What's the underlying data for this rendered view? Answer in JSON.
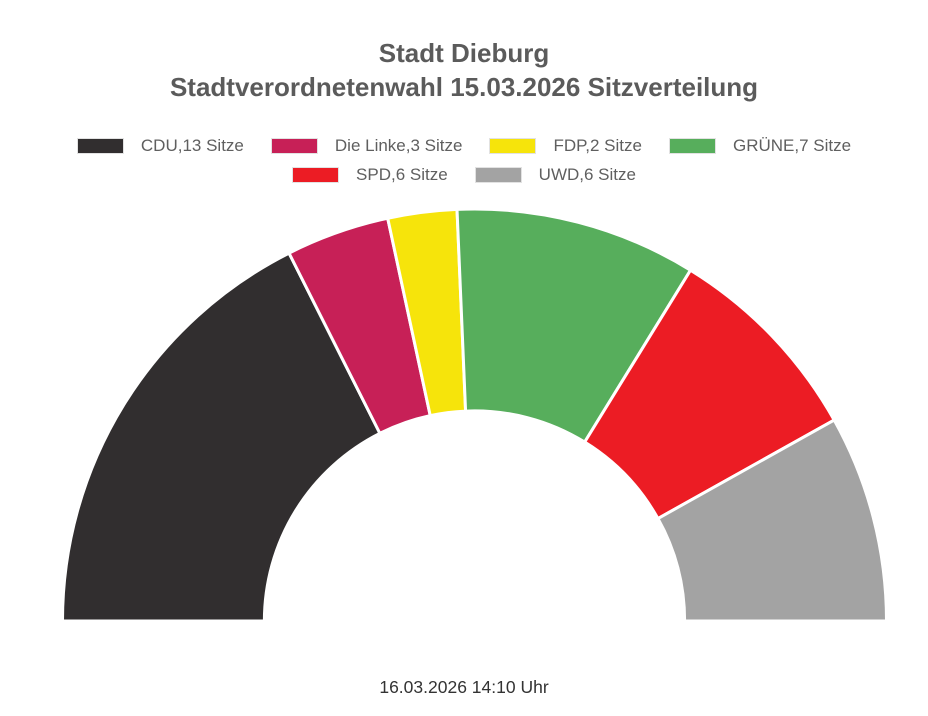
{
  "title": {
    "line1": "Stadt Dieburg",
    "line2": "Stadtverordnetenwahl 15.03.2026 Sitzverteilung"
  },
  "footer": {
    "timestamp": "16.03.2026 14:10 Uhr"
  },
  "chart_data": {
    "type": "pie",
    "variant": "half-donut",
    "title": "Stadt Dieburg",
    "subtitle": "Stadtverordnetenwahl 15.03.2026 Sitzverteilung",
    "unit": "Sitze",
    "total_seats": 37,
    "start_angle_deg": 180,
    "end_angle_deg": 0,
    "inner_radius_ratio": 0.51,
    "legend_position": "top",
    "series": [
      {
        "name": "CDU",
        "seats": 13,
        "color": "#312E2F",
        "legend_label": "CDU,13 Sitze"
      },
      {
        "name": "Die Linke",
        "seats": 3,
        "color": "#C72057",
        "legend_label": "Die Linke,3 Sitze"
      },
      {
        "name": "FDP",
        "seats": 2,
        "color": "#F6E40B",
        "legend_label": "FDP,2 Sitze"
      },
      {
        "name": "GRÜNE",
        "seats": 7,
        "color": "#57AE5C",
        "legend_label": "GRÜNE,7 Sitze"
      },
      {
        "name": "SPD",
        "seats": 6,
        "color": "#EC1C24",
        "legend_label": "SPD,6 Sitze"
      },
      {
        "name": "UWD",
        "seats": 6,
        "color": "#A3A3A3",
        "legend_label": "UWD,6 Sitze"
      }
    ],
    "legend_rows": [
      [
        0,
        1,
        2,
        3
      ],
      [
        4,
        5
      ]
    ]
  },
  "colors": {
    "title_text": "#5b5b5b",
    "legend_text": "#5f5f5f",
    "footer_text": "#333333",
    "background": "#ffffff",
    "segment_separator": "#ffffff"
  }
}
